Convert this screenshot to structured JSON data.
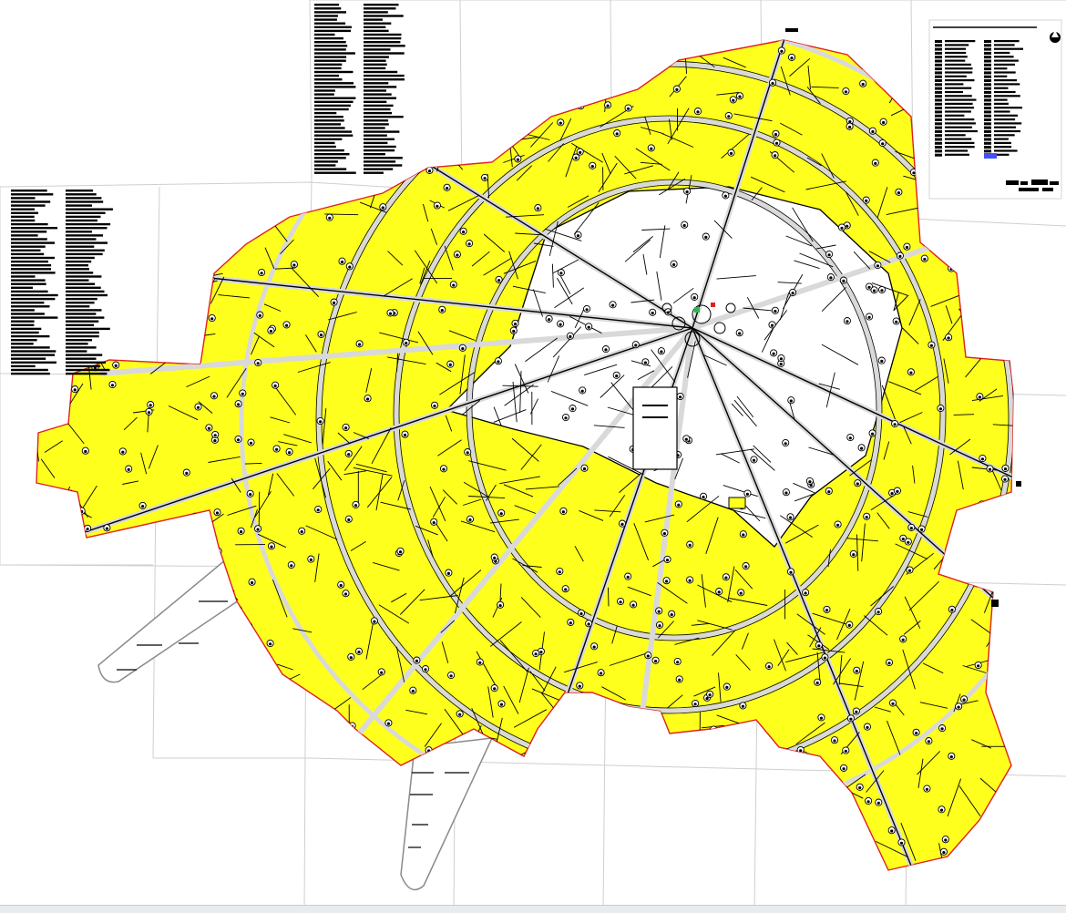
{
  "map": {
    "title": "",
    "colors": {
      "developed_zone": "#ffff1e",
      "existing_core": "#ffffff",
      "block_outline": "#000000",
      "street": "#c8c8c8",
      "sheet_grid": "#cfcfcf",
      "parcel_mark": "#000000",
      "boundary": "#e02020",
      "legend_highlight": "#4050ff"
    },
    "icons": [
      "north-arrow-icon",
      "parcel-marker-icon"
    ]
  }
}
